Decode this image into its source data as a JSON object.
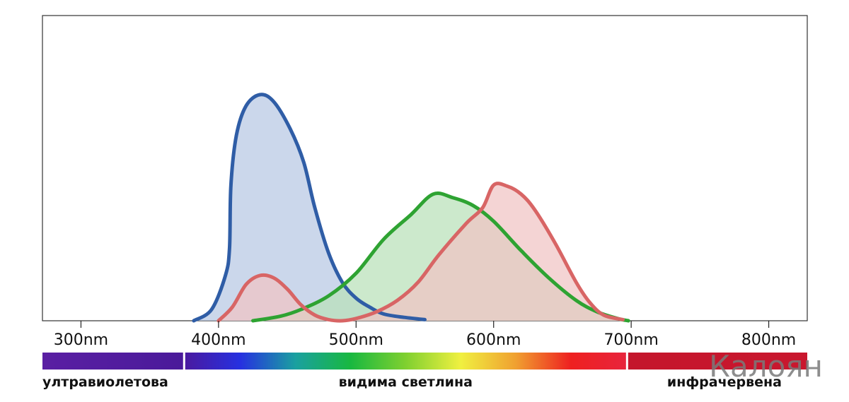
{
  "chart_data": {
    "type": "area",
    "title": "",
    "xlabel": "",
    "ylabel": "",
    "xlim": [
      272,
      828
    ],
    "ylim": [
      0,
      1
    ],
    "grid": false,
    "x_ticks": [
      {
        "value": 300,
        "label": "300nm"
      },
      {
        "value": 400,
        "label": "400nm"
      },
      {
        "value": 500,
        "label": "500nm"
      },
      {
        "value": 600,
        "label": "600nm"
      },
      {
        "value": 700,
        "label": "700nm"
      },
      {
        "value": 800,
        "label": "800nm"
      }
    ],
    "series": [
      {
        "color": "#2f5da6",
        "fill": "#b7c8e3",
        "points": [
          [
            382,
            0
          ],
          [
            395,
            0.05
          ],
          [
            405,
            0.2
          ],
          [
            408,
            0.32
          ],
          [
            409,
            0.6
          ],
          [
            413,
            0.82
          ],
          [
            420,
            0.95
          ],
          [
            430,
            1.0
          ],
          [
            440,
            0.97
          ],
          [
            452,
            0.85
          ],
          [
            462,
            0.7
          ],
          [
            470,
            0.5
          ],
          [
            480,
            0.3
          ],
          [
            490,
            0.17
          ],
          [
            500,
            0.1
          ],
          [
            510,
            0.06
          ],
          [
            520,
            0.03
          ],
          [
            535,
            0.015
          ],
          [
            550,
            0.005
          ]
        ]
      },
      {
        "color": "#2ea332",
        "fill": "#b8e0b8",
        "points": [
          [
            425,
            0
          ],
          [
            445,
            0.02
          ],
          [
            460,
            0.05
          ],
          [
            480,
            0.11
          ],
          [
            500,
            0.21
          ],
          [
            520,
            0.36
          ],
          [
            540,
            0.47
          ],
          [
            556,
            0.56
          ],
          [
            570,
            0.545
          ],
          [
            585,
            0.51
          ],
          [
            600,
            0.44
          ],
          [
            620,
            0.31
          ],
          [
            640,
            0.19
          ],
          [
            660,
            0.09
          ],
          [
            675,
            0.04
          ],
          [
            690,
            0.01
          ],
          [
            698,
            0
          ]
        ]
      },
      {
        "color": "#d86565",
        "fill": "#f0c3c3",
        "points": [
          [
            400,
            0
          ],
          [
            410,
            0.06
          ],
          [
            420,
            0.16
          ],
          [
            430,
            0.2
          ],
          [
            440,
            0.19
          ],
          [
            450,
            0.14
          ],
          [
            460,
            0.07
          ],
          [
            470,
            0.025
          ],
          [
            480,
            0.005
          ],
          [
            490,
            0
          ],
          [
            500,
            0.01
          ],
          [
            515,
            0.04
          ],
          [
            530,
            0.09
          ],
          [
            545,
            0.17
          ],
          [
            560,
            0.29
          ],
          [
            580,
            0.43
          ],
          [
            592,
            0.5
          ],
          [
            600,
            0.6
          ],
          [
            610,
            0.595
          ],
          [
            620,
            0.56
          ],
          [
            630,
            0.49
          ],
          [
            645,
            0.34
          ],
          [
            660,
            0.17
          ],
          [
            670,
            0.08
          ],
          [
            680,
            0.025
          ],
          [
            694,
            0.005
          ]
        ]
      }
    ]
  },
  "spectrum": {
    "bands": [
      {
        "label": "ултравиолетова",
        "from": 272,
        "to": 375,
        "colors": [
          "#5a1fa3",
          "#4a1a9a"
        ]
      },
      {
        "label": "видима светлина",
        "from": 375,
        "to": 697,
        "colors": [
          "#4a1aa0",
          "#2630e0",
          "#1aa0a0",
          "#18b840",
          "#7fd030",
          "#f0f040",
          "#f0a030",
          "#ee2020",
          "#e8243c"
        ]
      },
      {
        "label": "инфрачервена",
        "from": 697,
        "to": 828,
        "colors": [
          "#c4162c",
          "#c9172e"
        ]
      }
    ]
  },
  "watermark": "Калоян"
}
